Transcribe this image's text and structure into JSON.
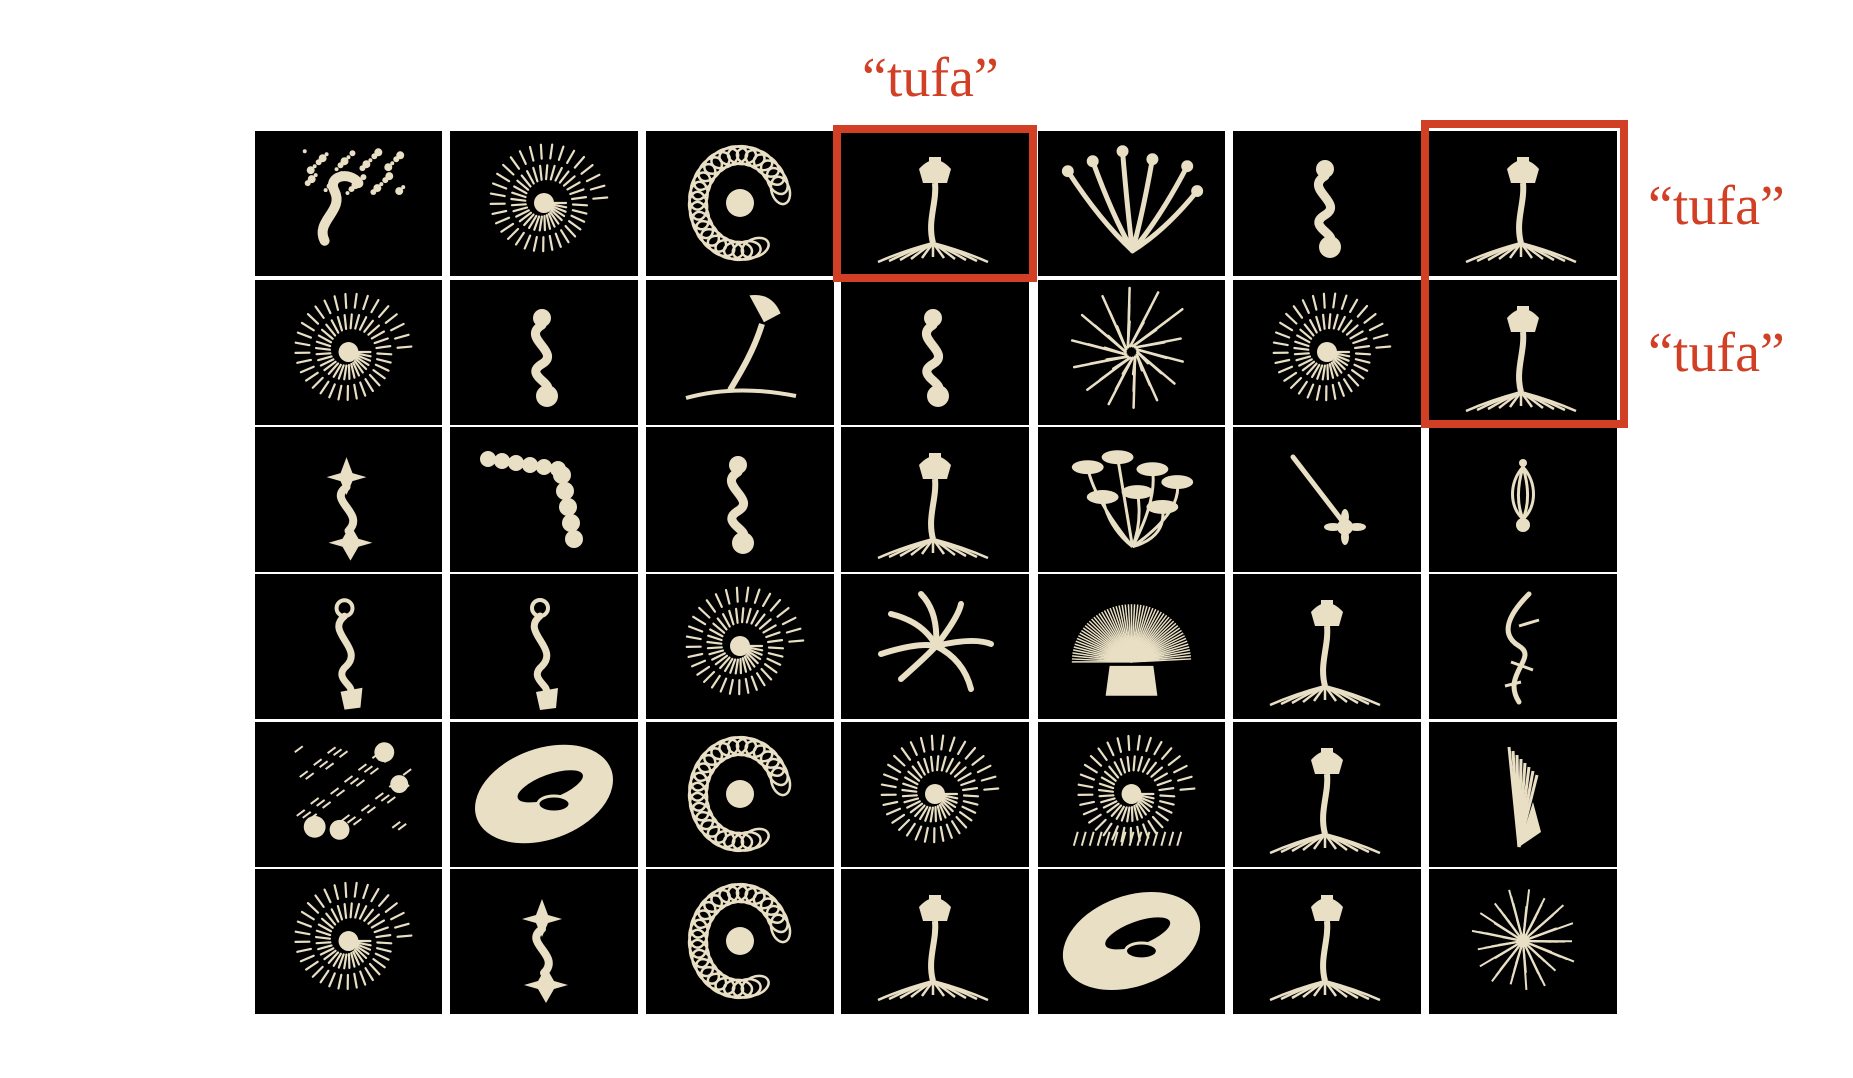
{
  "grid": {
    "rows": 6,
    "cols": 7,
    "cells": [
      [
        "coral-tree",
        "spiral-shell",
        "coiled-shell",
        "tufa",
        "branching-stalks",
        "s-curve-spheres",
        "tufa"
      ],
      [
        "spiral-shell",
        "s-curve-spheres",
        "tilted-tufa",
        "s-curve-spheres",
        "spiral-fan",
        "spiral-shell",
        "tufa"
      ],
      [
        "spiky-s-curve",
        "bead-chain",
        "s-curve-spheres",
        "tufa",
        "mushroom-cluster",
        "diagonal-stick",
        "vase"
      ],
      [
        "s-curve-cone",
        "s-curve-cone",
        "spiral-shell",
        "twisted-tentacles",
        "anemone",
        "tufa",
        "vine"
      ],
      [
        "spiky-cluster",
        "torus-shell",
        "coiled-shell",
        "spiral-shell",
        "spiky-shell",
        "tufa",
        "fan-stack"
      ],
      [
        "spiral-shell",
        "spiky-s-curve",
        "coiled-shell",
        "tufa",
        "torus-shell",
        "tufa",
        "spiky-ball"
      ]
    ]
  },
  "highlight_color": "#d13f24",
  "object_color": "#e8dfc4",
  "labels": {
    "top": "“tufa”",
    "right_row1": "“tufa”",
    "right_row2": "“tufa”"
  }
}
